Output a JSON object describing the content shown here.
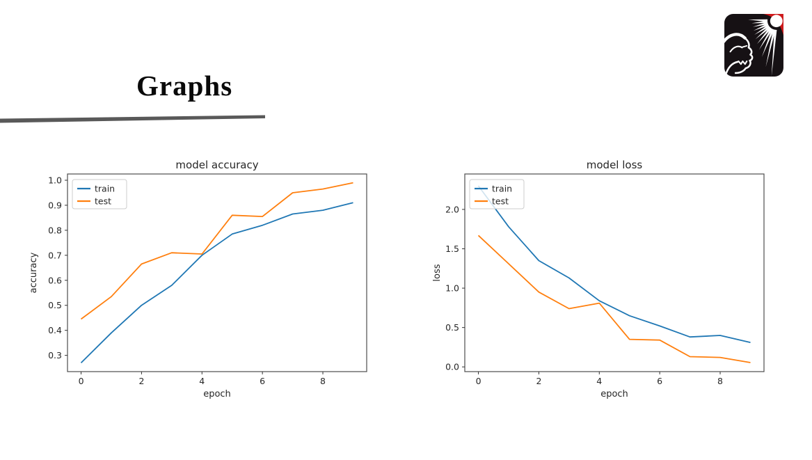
{
  "slide": {
    "title": "Graphs",
    "divider_color": "#595959"
  },
  "logo": {
    "icon": "sunburst-face-logo-icon",
    "bg_color": "#161114",
    "corner_color": "#ce1a1c",
    "ray_color": "#ffffff"
  },
  "colors": {
    "train": "#1f77b4",
    "test": "#ff7f0e",
    "axis": "#4d4d4d",
    "tick": "#333333",
    "text": "#262626",
    "legend_border": "#cccccc"
  },
  "chart_data": [
    {
      "type": "line",
      "title": "model accuracy",
      "xlabel": "epoch",
      "ylabel": "accuracy",
      "x": [
        0,
        1,
        2,
        3,
        4,
        5,
        6,
        7,
        8,
        9
      ],
      "series": [
        {
          "name": "train",
          "color": "#1f77b4",
          "values": [
            0.27,
            0.39,
            0.5,
            0.58,
            0.7,
            0.785,
            0.82,
            0.865,
            0.88,
            0.91
          ]
        },
        {
          "name": "test",
          "color": "#ff7f0e",
          "values": [
            0.445,
            0.535,
            0.665,
            0.71,
            0.705,
            0.86,
            0.855,
            0.95,
            0.965,
            0.99
          ]
        }
      ],
      "legend": [
        "train",
        "test"
      ],
      "legend_position": "upper left",
      "grid": false,
      "xticks": [
        0,
        2,
        4,
        6,
        8
      ],
      "yticks": [
        0.3,
        0.4,
        0.5,
        0.6,
        0.7,
        0.8,
        0.9,
        1.0
      ],
      "xlim": [
        -0.45,
        9.45
      ],
      "ylim": [
        0.235,
        1.025
      ]
    },
    {
      "type": "line",
      "title": "model loss",
      "xlabel": "epoch",
      "ylabel": "loss",
      "x": [
        0,
        1,
        2,
        3,
        4,
        5,
        6,
        7,
        8,
        9
      ],
      "series": [
        {
          "name": "train",
          "color": "#1f77b4",
          "values": [
            2.3,
            1.78,
            1.35,
            1.13,
            0.84,
            0.65,
            0.52,
            0.38,
            0.4,
            0.31
          ]
        },
        {
          "name": "test",
          "color": "#ff7f0e",
          "values": [
            1.67,
            1.31,
            0.95,
            0.74,
            0.81,
            0.35,
            0.34,
            0.13,
            0.12,
            0.055
          ]
        }
      ],
      "legend": [
        "train",
        "test"
      ],
      "legend_position": "upper left",
      "grid": false,
      "xticks": [
        0,
        2,
        4,
        6,
        8
      ],
      "yticks": [
        0.0,
        0.5,
        1.0,
        1.5,
        2.0
      ],
      "xlim": [
        -0.45,
        9.45
      ],
      "ylim": [
        -0.06,
        2.45
      ]
    }
  ]
}
